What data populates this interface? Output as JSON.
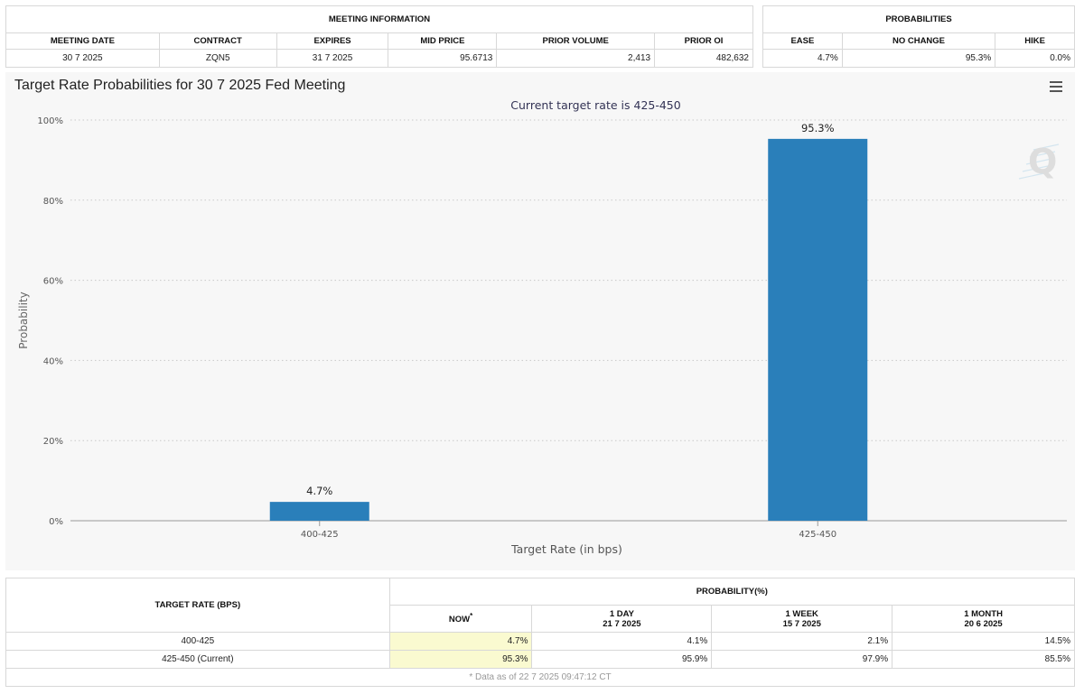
{
  "meeting_info": {
    "header": "MEETING INFORMATION",
    "columns": [
      "MEETING DATE",
      "CONTRACT",
      "EXPIRES",
      "MID PRICE",
      "PRIOR VOLUME",
      "PRIOR OI"
    ],
    "row": [
      "30 7 2025",
      "ZQN5",
      "31 7 2025",
      "95.6713",
      "2,413",
      "482,632"
    ]
  },
  "probabilities": {
    "header": "PROBABILITIES",
    "columns": [
      "EASE",
      "NO CHANGE",
      "HIKE"
    ],
    "row": [
      "4.7%",
      "95.3%",
      "0.0%"
    ]
  },
  "chart_data": {
    "type": "bar",
    "title": "Target Rate Probabilities for 30 7 2025 Fed Meeting",
    "subtitle": "Current target rate is 425-450",
    "xlabel": "Target Rate (in bps)",
    "ylabel": "Probability",
    "categories": [
      "400-425",
      "425-450"
    ],
    "values": [
      4.7,
      95.3
    ],
    "data_labels": [
      "4.7%",
      "95.3%"
    ],
    "ylim": [
      0,
      100
    ],
    "yticks": [
      0,
      20,
      40,
      60,
      80,
      100
    ],
    "ytick_labels": [
      "0%",
      "20%",
      "40%",
      "60%",
      "80%",
      "100%"
    ],
    "grid": true,
    "bar_color": "#2a7fba"
  },
  "bottom_table": {
    "col_target": "TARGET RATE (BPS)",
    "col_prob": "PROBABILITY(%)",
    "now_label": "NOW",
    "now_mark": "*",
    "periods": [
      {
        "name": "1 DAY",
        "date": "21 7 2025"
      },
      {
        "name": "1 WEEK",
        "date": "15 7 2025"
      },
      {
        "name": "1 MONTH",
        "date": "20 6 2025"
      }
    ],
    "rows": [
      {
        "rate": "400-425",
        "now": "4.7%",
        "day": "4.1%",
        "week": "2.1%",
        "month": "14.5%"
      },
      {
        "rate": "425-450 (Current)",
        "now": "95.3%",
        "day": "95.9%",
        "week": "97.9%",
        "month": "85.5%"
      }
    ],
    "footnote": "* Data as of 22 7 2025 09:47:12 CT"
  },
  "icons": {
    "menu": "hamburger-menu-icon",
    "watermark": "quikstrike-q-logo"
  }
}
